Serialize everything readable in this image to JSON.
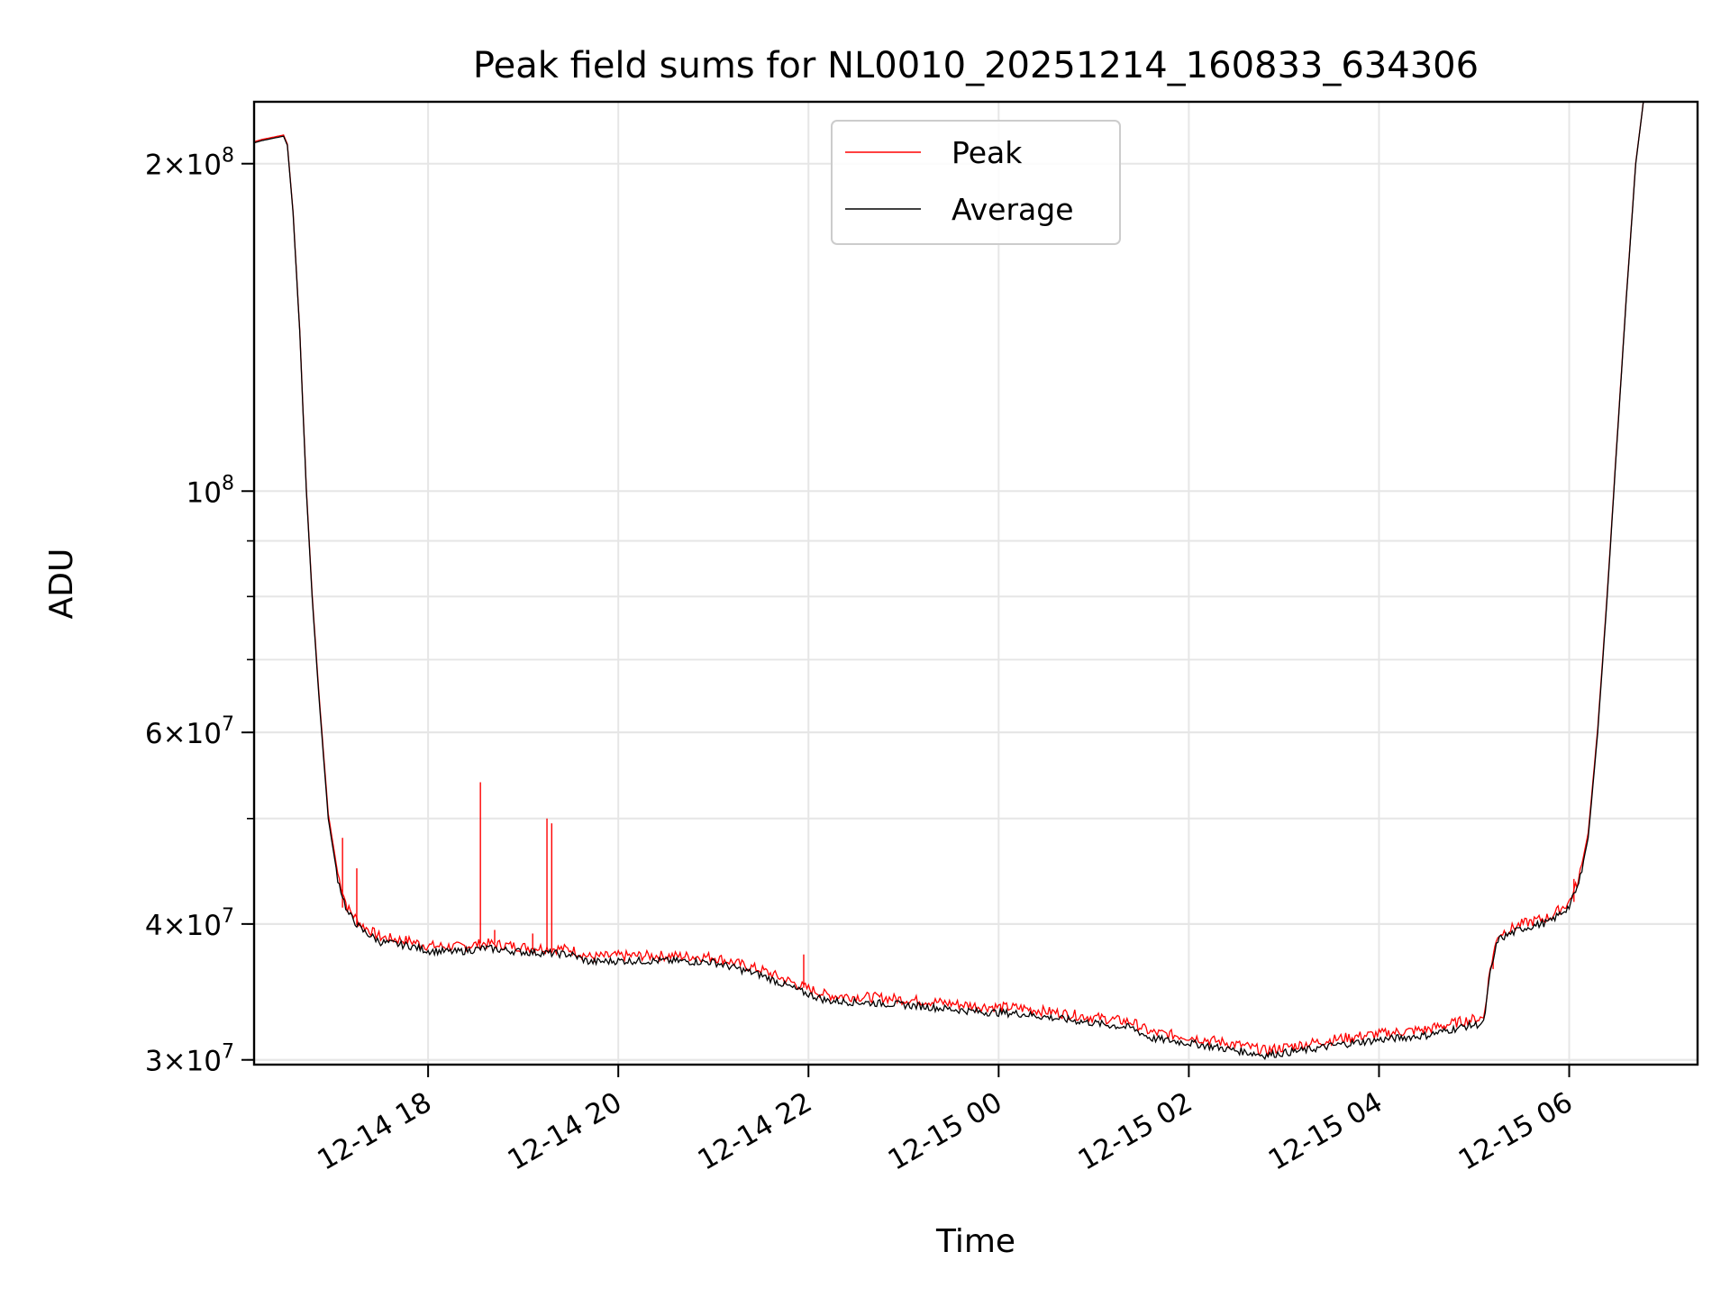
{
  "chart_data": {
    "type": "line",
    "title": "Peak field sums for NL0010_20251214_160833_634306",
    "xlabel": "Time",
    "ylabel": "ADU",
    "yscale": "log",
    "xlim_hours": [
      16.17,
      31.35
    ],
    "ylim": [
      29700000,
      228000000
    ],
    "x_ticks": [
      {
        "hour": 18,
        "label": "12-14 18"
      },
      {
        "hour": 20,
        "label": "12-14 20"
      },
      {
        "hour": 22,
        "label": "12-14 22"
      },
      {
        "hour": 24,
        "label": "12-15 00"
      },
      {
        "hour": 26,
        "label": "12-15 02"
      },
      {
        "hour": 28,
        "label": "12-15 04"
      },
      {
        "hour": 30,
        "label": "12-15 06"
      }
    ],
    "y_major_ticks": [
      {
        "value": 30000000,
        "mantissa": "3",
        "exp": "7"
      },
      {
        "value": 40000000,
        "mantissa": "4",
        "exp": "7"
      },
      {
        "value": 60000000,
        "mantissa": "6",
        "exp": "7"
      },
      {
        "value": 100000000,
        "mantissa": "",
        "exp": "8"
      },
      {
        "value": 200000000,
        "mantissa": "2",
        "exp": "8"
      }
    ],
    "y_minor_ticks": [
      30000000,
      40000000,
      50000000,
      60000000,
      70000000,
      80000000,
      90000000
    ],
    "legend": {
      "position": "upper center",
      "entries": [
        "Peak",
        "Average"
      ]
    },
    "series": [
      {
        "name": "Average",
        "color": "#000000",
        "points": [
          [
            16.17,
            209000000
          ],
          [
            16.25,
            210000000
          ],
          [
            16.48,
            212000000
          ],
          [
            16.52,
            208000000
          ],
          [
            16.58,
            180000000
          ],
          [
            16.65,
            140000000
          ],
          [
            16.72,
            100000000
          ],
          [
            16.78,
            80000000
          ],
          [
            16.85,
            65000000
          ],
          [
            16.95,
            50000000
          ],
          [
            17.05,
            44000000
          ],
          [
            17.15,
            41000000
          ],
          [
            17.3,
            39500000
          ],
          [
            17.5,
            38500000
          ],
          [
            17.8,
            38200000
          ],
          [
            18.0,
            37800000
          ],
          [
            18.3,
            37700000
          ],
          [
            18.6,
            38000000
          ],
          [
            19.0,
            37700000
          ],
          [
            19.5,
            37500000
          ],
          [
            19.7,
            36900000
          ],
          [
            20.0,
            37000000
          ],
          [
            20.5,
            37000000
          ],
          [
            21.0,
            36900000
          ],
          [
            21.5,
            35900000
          ],
          [
            21.95,
            34600000
          ],
          [
            22.2,
            34000000
          ],
          [
            22.8,
            33800000
          ],
          [
            23.2,
            33600000
          ],
          [
            23.8,
            33200000
          ],
          [
            24.2,
            33100000
          ],
          [
            24.8,
            32600000
          ],
          [
            25.4,
            32100000
          ],
          [
            25.6,
            31400000
          ],
          [
            26.0,
            31100000
          ],
          [
            26.5,
            30600000
          ],
          [
            26.8,
            30300000
          ],
          [
            27.2,
            30600000
          ],
          [
            27.6,
            31000000
          ],
          [
            28.0,
            31300000
          ],
          [
            28.5,
            31600000
          ],
          [
            28.9,
            32200000
          ],
          [
            29.1,
            32400000
          ],
          [
            29.17,
            36000000
          ],
          [
            29.25,
            38700000
          ],
          [
            29.5,
            39600000
          ],
          [
            29.8,
            40200000
          ],
          [
            30.0,
            41500000
          ],
          [
            30.1,
            43500000
          ],
          [
            30.2,
            48000000
          ],
          [
            30.3,
            60000000
          ],
          [
            30.4,
            80000000
          ],
          [
            30.5,
            110000000
          ],
          [
            30.6,
            150000000
          ],
          [
            30.7,
            200000000
          ],
          [
            30.78,
            228000000
          ]
        ]
      },
      {
        "name": "Peak",
        "color": "#ff0000",
        "points": [
          [
            16.17,
            209500000
          ],
          [
            16.25,
            210500000
          ],
          [
            16.48,
            212500000
          ],
          [
            16.52,
            208500000
          ],
          [
            16.58,
            180500000
          ],
          [
            16.65,
            140500000
          ],
          [
            16.72,
            100500000
          ],
          [
            16.78,
            80500000
          ],
          [
            16.85,
            65500000
          ],
          [
            16.95,
            50500000
          ],
          [
            17.05,
            44500000
          ],
          [
            17.15,
            41400000
          ],
          [
            17.3,
            39900000
          ],
          [
            17.5,
            38900000
          ],
          [
            17.8,
            38600000
          ],
          [
            18.0,
            38200000
          ],
          [
            18.3,
            38100000
          ],
          [
            18.6,
            38400000
          ],
          [
            19.0,
            38100000
          ],
          [
            19.5,
            37900000
          ],
          [
            19.7,
            37300000
          ],
          [
            20.0,
            37400000
          ],
          [
            20.5,
            37400000
          ],
          [
            21.0,
            37300000
          ],
          [
            21.5,
            36300000
          ],
          [
            21.95,
            35000000
          ],
          [
            22.2,
            34400000
          ],
          [
            22.8,
            34200000
          ],
          [
            23.2,
            34000000
          ],
          [
            23.8,
            33600000
          ],
          [
            24.2,
            33500000
          ],
          [
            24.8,
            33000000
          ],
          [
            25.4,
            32500000
          ],
          [
            25.6,
            31800000
          ],
          [
            26.0,
            31500000
          ],
          [
            26.5,
            31000000
          ],
          [
            26.8,
            30600000
          ],
          [
            27.2,
            31000000
          ],
          [
            27.6,
            31400000
          ],
          [
            28.0,
            31700000
          ],
          [
            28.5,
            32000000
          ],
          [
            28.9,
            32600000
          ],
          [
            29.1,
            32800000
          ],
          [
            29.17,
            36400000
          ],
          [
            29.25,
            39100000
          ],
          [
            29.5,
            40000000
          ],
          [
            29.8,
            40600000
          ],
          [
            30.0,
            41900000
          ],
          [
            30.1,
            43900000
          ],
          [
            30.2,
            48500000
          ],
          [
            30.3,
            60500000
          ],
          [
            30.4,
            80500000
          ],
          [
            30.5,
            110500000
          ],
          [
            30.6,
            150500000
          ],
          [
            30.7,
            200500000
          ],
          [
            30.78,
            228000000
          ]
        ],
        "spikes": [
          [
            17.1,
            48000000
          ],
          [
            17.25,
            45000000
          ],
          [
            18.55,
            54000000
          ],
          [
            18.7,
            39500000
          ],
          [
            19.1,
            39200000
          ],
          [
            19.25,
            50000000
          ],
          [
            19.3,
            49500000
          ],
          [
            21.95,
            37500000
          ],
          [
            29.2,
            37000000
          ],
          [
            30.05,
            44000000
          ]
        ]
      }
    ]
  }
}
